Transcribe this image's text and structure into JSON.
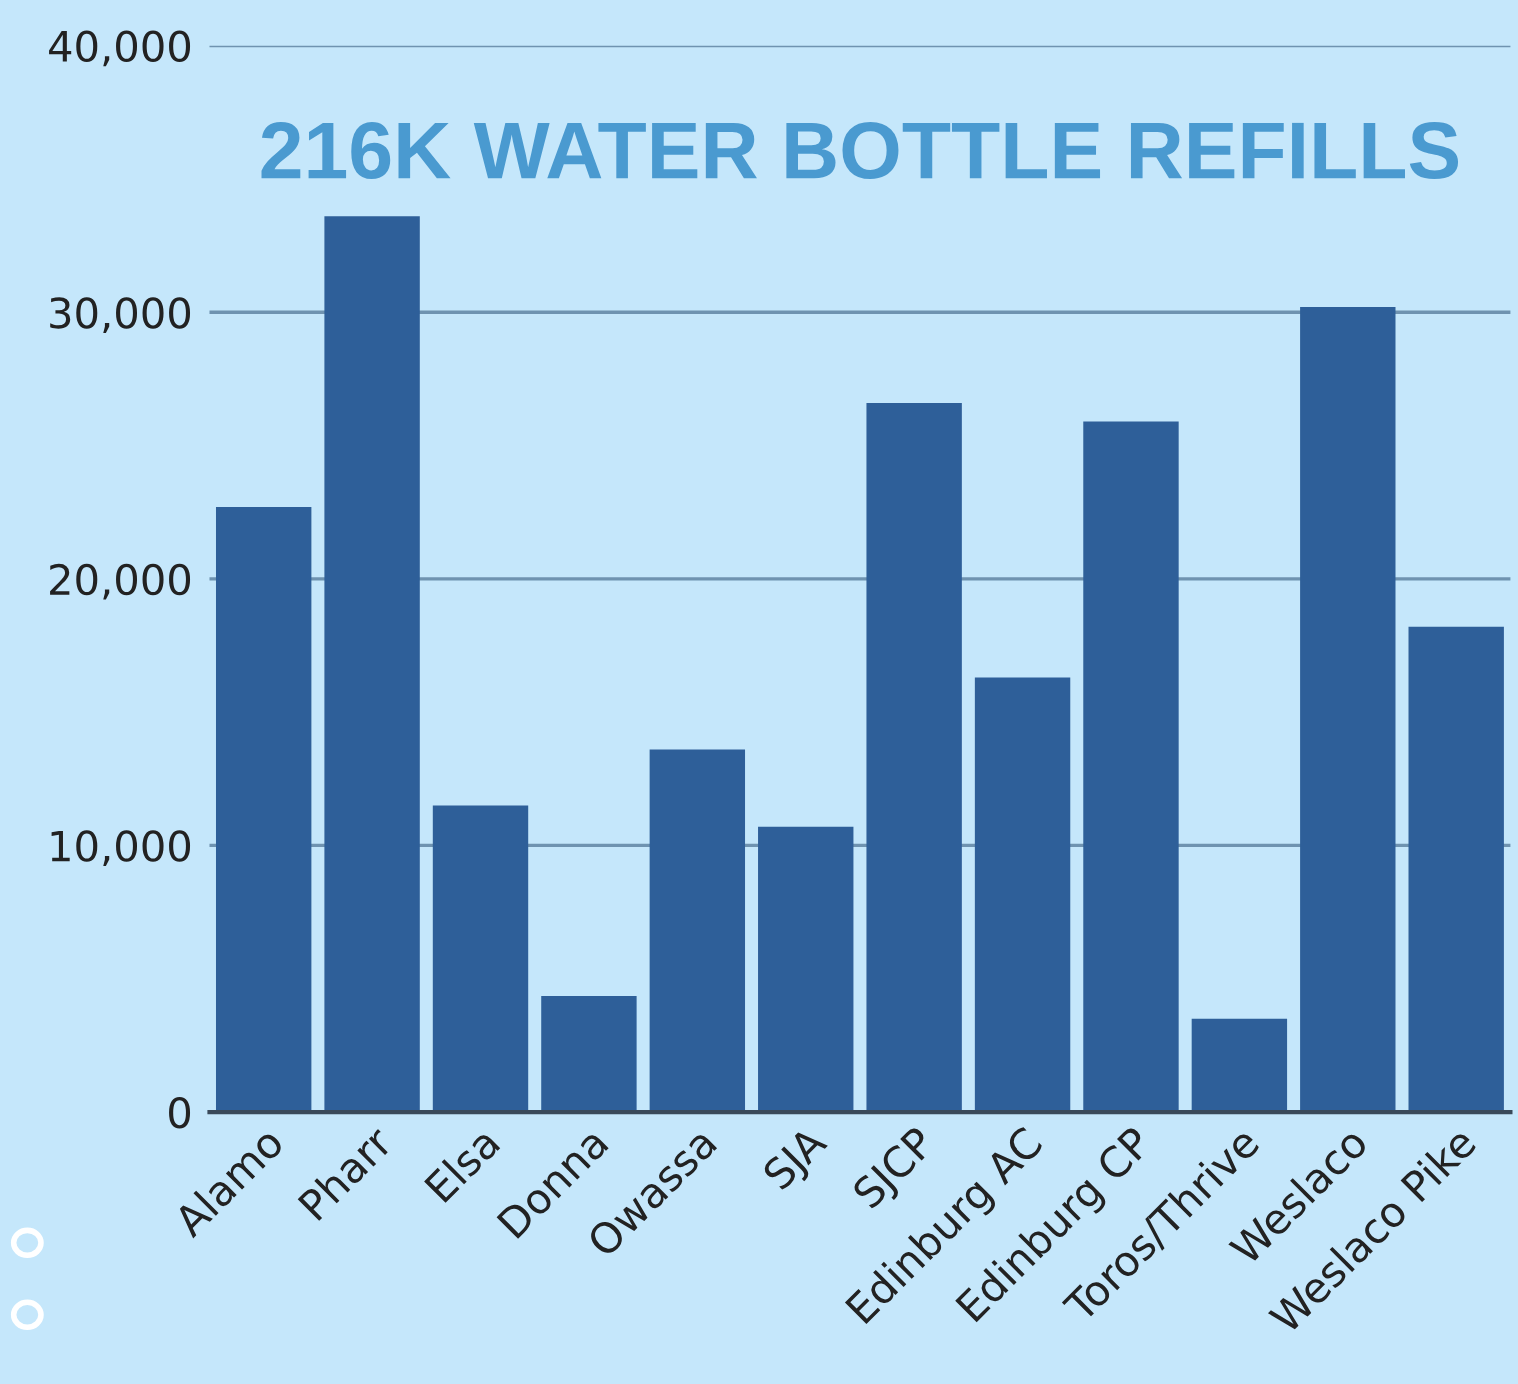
{
  "chart_data": {
    "type": "bar",
    "title": "216K WATER BOTTLE REFILLS",
    "categories": [
      "Alamo",
      "Pharr",
      "Elsa",
      "Donna",
      "Owassa",
      "SJA",
      "SJCP",
      "Edinburg AC",
      "Edinburg CP",
      "Toros/Thrive",
      "Weslaco",
      "Weslaco Pike"
    ],
    "values": [
      22700,
      33600,
      11500,
      4350,
      13600,
      10700,
      26600,
      16300,
      25900,
      3500,
      30200,
      18200
    ],
    "color": "#2e5f99",
    "ylim": [
      0,
      40000
    ],
    "yticks": [
      {
        "value": 0,
        "label": "0"
      },
      {
        "value": 10000,
        "label": "10,000"
      },
      {
        "value": 20000,
        "label": "20,000"
      },
      {
        "value": 30000,
        "label": "30,000"
      },
      {
        "value": 40000,
        "label": "40,000"
      }
    ],
    "grid": "y"
  }
}
